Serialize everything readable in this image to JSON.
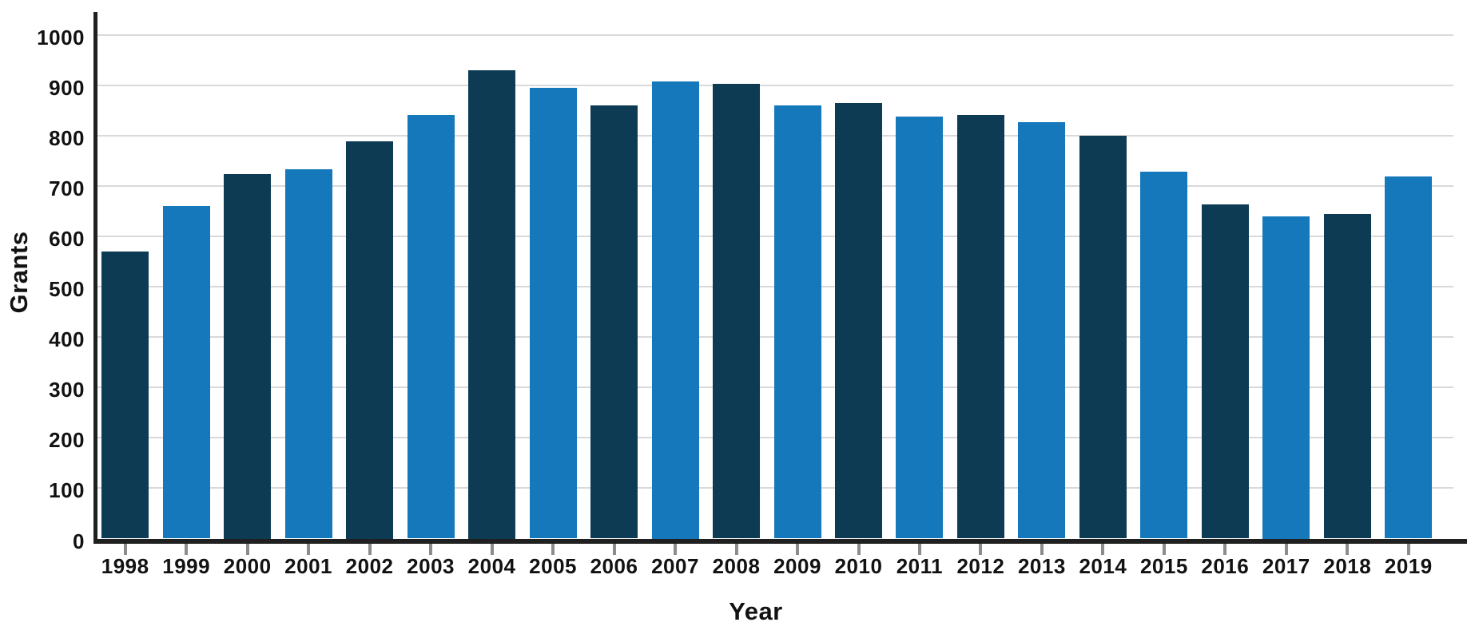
{
  "chart_data": {
    "type": "bar",
    "title": "",
    "xlabel": "Year",
    "ylabel": "Grants",
    "categories": [
      "1998",
      "1999",
      "2000",
      "2001",
      "2002",
      "2003",
      "2004",
      "2005",
      "2006",
      "2007",
      "2008",
      "2009",
      "2010",
      "2011",
      "2012",
      "2013",
      "2014",
      "2015",
      "2016",
      "2017",
      "2018",
      "2019"
    ],
    "values": [
      570,
      660,
      724,
      733,
      789,
      842,
      931,
      895,
      861,
      908,
      903,
      861,
      865,
      838,
      842,
      827,
      800,
      729,
      664,
      640,
      645,
      719
    ],
    "ylim": [
      0,
      1050
    ],
    "yticks": [
      0,
      100,
      200,
      300,
      400,
      500,
      600,
      700,
      800,
      900,
      1000
    ],
    "grid": true,
    "legend": false,
    "bar_color_pattern": "alternating-by-year"
  },
  "colors": {
    "bar_dark": "#0d3b54",
    "bar_light": "#1478ba",
    "gridline": "#d9d9d9",
    "axis_line": "#202020",
    "tick_mark": "#8c8c8c",
    "label_text": "#121212",
    "background": "#ffffff"
  }
}
